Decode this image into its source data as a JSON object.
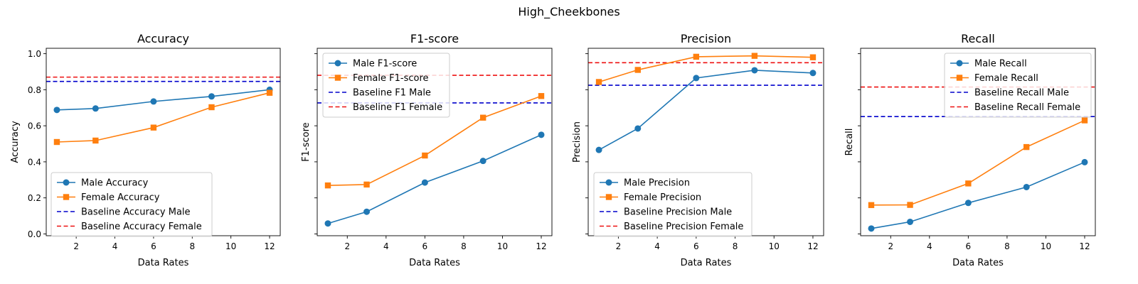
{
  "figure": {
    "suptitle": "High_Cheekbones"
  },
  "colors": {
    "male": "#1f77b4",
    "female": "#ff7f0e",
    "baseline_male": "#0000cc",
    "baseline_female": "#ee1111"
  },
  "chart_data": [
    {
      "type": "line",
      "title": "Accuracy",
      "xlabel": "Data Rates",
      "ylabel": "Accuracy",
      "x": [
        1,
        3,
        6,
        9,
        12
      ],
      "xticks": [
        2,
        4,
        6,
        8,
        10,
        12
      ],
      "xlim": [
        0.45,
        12.55
      ],
      "ylim": [
        -0.01,
        1.03
      ],
      "yticks": [
        0.0,
        0.2,
        0.4,
        0.6,
        0.8,
        1.0
      ],
      "ytick_labels": [
        "0.0",
        "0.2",
        "0.4",
        "0.6",
        "0.8",
        "1.0"
      ],
      "series": [
        {
          "name": "Male Accuracy",
          "values": [
            0.688,
            0.696,
            0.735,
            0.763,
            0.8
          ],
          "marker": "circle",
          "color": "#1f77b4"
        },
        {
          "name": "Female Accuracy",
          "values": [
            0.51,
            0.518,
            0.59,
            0.703,
            0.783
          ],
          "marker": "square",
          "color": "#ff7f0e"
        }
      ],
      "baselines": [
        {
          "name": "Baseline Accuracy Male",
          "value": 0.846,
          "color": "#0000cc"
        },
        {
          "name": "Baseline Accuracy Female",
          "value": 0.87,
          "color": "#ee1111"
        }
      ],
      "legend": "lower-left",
      "grid": false
    },
    {
      "type": "line",
      "title": "F1-score",
      "xlabel": "Data Rates",
      "ylabel": "F1-score",
      "x": [
        1,
        3,
        6,
        9,
        12
      ],
      "xticks": [
        2,
        4,
        6,
        8,
        10,
        12
      ],
      "xlim": [
        0.45,
        12.55
      ],
      "ylim": [
        -0.01,
        1.03
      ],
      "yticks": [
        0.0,
        0.2,
        0.4,
        0.6,
        0.8,
        1.0
      ],
      "ytick_labels": [
        "",
        "",
        "",
        "",
        "",
        ""
      ],
      "series": [
        {
          "name": "Male F1-score",
          "values": [
            0.058,
            0.123,
            0.285,
            0.405,
            0.55
          ],
          "marker": "circle",
          "color": "#1f77b4"
        },
        {
          "name": "Female F1-score",
          "values": [
            0.269,
            0.274,
            0.435,
            0.645,
            0.765
          ],
          "marker": "square",
          "color": "#ff7f0e"
        }
      ],
      "baselines": [
        {
          "name": "Baseline F1 Male",
          "value": 0.727,
          "color": "#0000cc"
        },
        {
          "name": "Baseline F1 Female",
          "value": 0.88,
          "color": "#ee1111"
        }
      ],
      "legend": "upper-left",
      "grid": false
    },
    {
      "type": "line",
      "title": "Precision",
      "xlabel": "Data Rates",
      "ylabel": "Precision",
      "x": [
        1,
        3,
        6,
        9,
        12
      ],
      "xticks": [
        2,
        4,
        6,
        8,
        10,
        12
      ],
      "xlim": [
        0.45,
        12.55
      ],
      "ylim": [
        -0.01,
        1.03
      ],
      "yticks": [
        0.0,
        0.2,
        0.4,
        0.6,
        0.8,
        1.0
      ],
      "ytick_labels": [
        "",
        "",
        "",
        "",
        "",
        ""
      ],
      "series": [
        {
          "name": "Male Precision",
          "values": [
            0.466,
            0.585,
            0.865,
            0.908,
            0.893
          ],
          "marker": "circle",
          "color": "#1f77b4"
        },
        {
          "name": "Female Precision",
          "values": [
            0.843,
            0.91,
            0.983,
            0.988,
            0.98
          ],
          "marker": "square",
          "color": "#ff7f0e"
        }
      ],
      "baselines": [
        {
          "name": "Baseline Precision Male",
          "value": 0.825,
          "color": "#0000cc"
        },
        {
          "name": "Baseline Precision Female",
          "value": 0.95,
          "color": "#ee1111"
        }
      ],
      "legend": "lower-left",
      "grid": false
    },
    {
      "type": "line",
      "title": "Recall",
      "xlabel": "Data Rates",
      "ylabel": "Recall",
      "x": [
        1,
        3,
        6,
        9,
        12
      ],
      "xticks": [
        2,
        4,
        6,
        8,
        10,
        12
      ],
      "xlim": [
        0.45,
        12.55
      ],
      "ylim": [
        -0.01,
        1.03
      ],
      "yticks": [
        0.0,
        0.2,
        0.4,
        0.6,
        0.8,
        1.0
      ],
      "ytick_labels": [
        "",
        "",
        "",
        "",
        "",
        ""
      ],
      "series": [
        {
          "name": "Male Recall",
          "values": [
            0.03,
            0.067,
            0.172,
            0.26,
            0.398
          ],
          "marker": "circle",
          "color": "#1f77b4"
        },
        {
          "name": "Female Recall",
          "values": [
            0.16,
            0.161,
            0.28,
            0.482,
            0.63
          ],
          "marker": "square",
          "color": "#ff7f0e"
        }
      ],
      "baselines": [
        {
          "name": "Baseline Recall Male",
          "value": 0.651,
          "color": "#0000cc"
        },
        {
          "name": "Baseline Recall Female",
          "value": 0.815,
          "color": "#ee1111"
        }
      ],
      "legend": "upper-right",
      "grid": false
    }
  ]
}
